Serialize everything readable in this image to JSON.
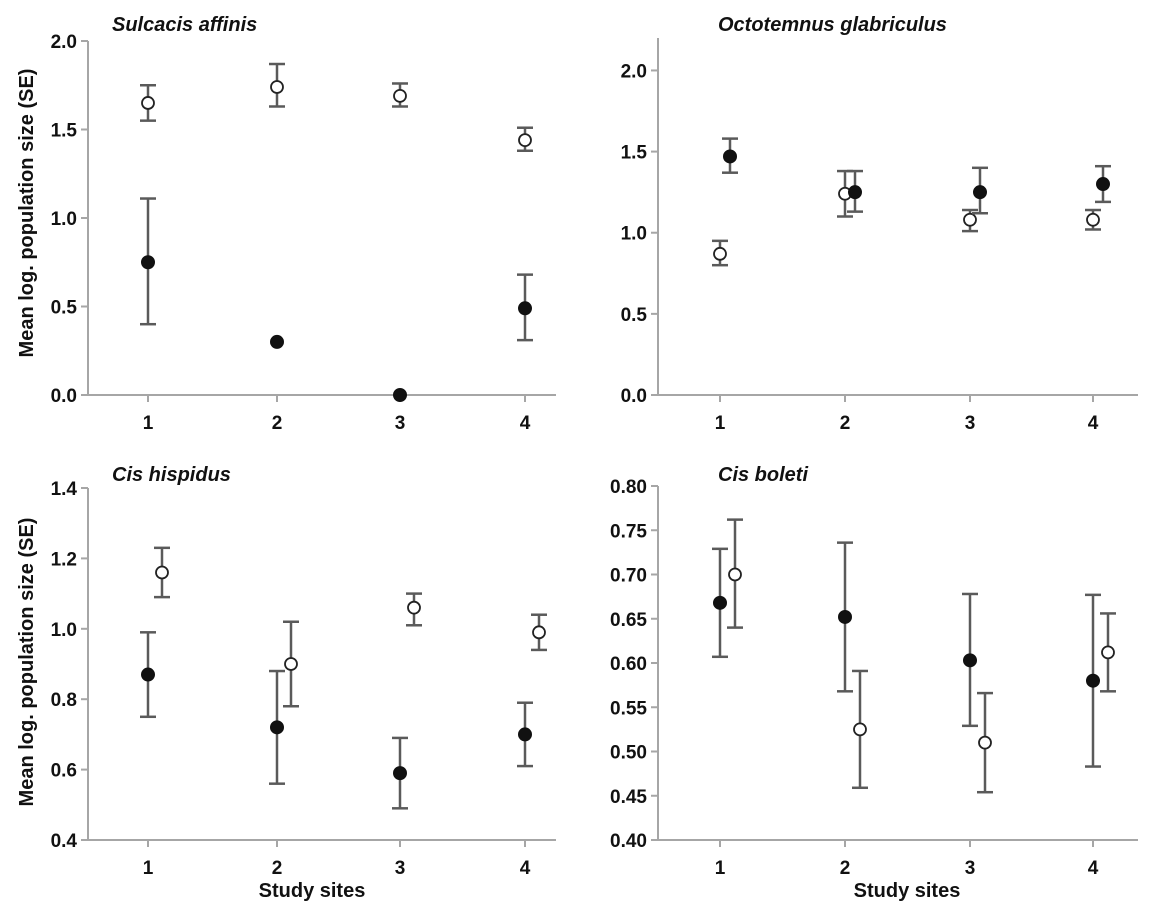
{
  "figure": {
    "ylabel": "Mean log. population size (SE)",
    "xlabel": "Study sites"
  },
  "chart_data": [
    {
      "type": "scatter",
      "title": "Sulcacis affinis",
      "xlabel": "",
      "ylabel": "Mean log. population size (SE)",
      "categories": [
        "1",
        "2",
        "3",
        "4"
      ],
      "ylim": [
        0,
        2.0
      ],
      "yticks": [
        "0.0",
        "0.5",
        "1.0",
        "1.5",
        "2.0"
      ],
      "series": [
        {
          "marker": "open",
          "points": [
            {
              "x": 1,
              "y": 1.65,
              "lo": 1.55,
              "hi": 1.75
            },
            {
              "x": 2,
              "y": 1.74,
              "lo": 1.63,
              "hi": 1.87
            },
            {
              "x": 3,
              "y": 1.69,
              "lo": 1.63,
              "hi": 1.76
            },
            {
              "x": 4,
              "y": 1.44,
              "lo": 1.38,
              "hi": 1.51
            }
          ]
        },
        {
          "marker": "filled",
          "points": [
            {
              "x": 1,
              "y": 0.75,
              "lo": 0.4,
              "hi": 1.11
            },
            {
              "x": 2,
              "y": 0.3
            },
            {
              "x": 3,
              "y": 0.0
            },
            {
              "x": 4,
              "y": 0.49,
              "lo": 0.31,
              "hi": 0.68
            }
          ]
        }
      ]
    },
    {
      "type": "scatter",
      "title": "Octotemnus glabriculus",
      "xlabel": "",
      "ylabel": "",
      "categories": [
        "1",
        "2",
        "3",
        "4"
      ],
      "ylim": [
        0,
        2.2
      ],
      "yticks": [
        "0.0",
        "0.5",
        "1.0",
        "1.5",
        "2.0"
      ],
      "series": [
        {
          "marker": "open",
          "points": [
            {
              "x": 1,
              "y": 0.87,
              "lo": 0.8,
              "hi": 0.95
            },
            {
              "x": 2,
              "y": 1.24,
              "lo": 1.1,
              "hi": 1.38
            },
            {
              "x": 3,
              "y": 1.08,
              "lo": 1.01,
              "hi": 1.14
            },
            {
              "x": 4,
              "y": 1.08,
              "lo": 1.02,
              "hi": 1.14
            }
          ]
        },
        {
          "marker": "filled",
          "points": [
            {
              "x": 1,
              "y": 1.47,
              "lo": 1.37,
              "hi": 1.58
            },
            {
              "x": 2,
              "y": 1.25,
              "lo": 1.13,
              "hi": 1.38
            },
            {
              "x": 3,
              "y": 1.25,
              "lo": 1.12,
              "hi": 1.4
            },
            {
              "x": 4,
              "y": 1.3,
              "lo": 1.19,
              "hi": 1.41
            }
          ]
        }
      ]
    },
    {
      "type": "scatter",
      "title": "Cis hispidus",
      "xlabel": "Study sites",
      "ylabel": "Mean log. population size (SE)",
      "categories": [
        "1",
        "2",
        "3",
        "4"
      ],
      "ylim": [
        0.4,
        1.4
      ],
      "yticks": [
        "0.4",
        "0.6",
        "0.8",
        "1.0",
        "1.2",
        "1.4"
      ],
      "series": [
        {
          "marker": "open",
          "points": [
            {
              "x": 1,
              "y": 1.16,
              "lo": 1.09,
              "hi": 1.23
            },
            {
              "x": 2,
              "y": 0.9,
              "lo": 0.78,
              "hi": 1.02
            },
            {
              "x": 3,
              "y": 1.06,
              "lo": 1.01,
              "hi": 1.1
            },
            {
              "x": 4,
              "y": 0.99,
              "lo": 0.94,
              "hi": 1.04
            }
          ]
        },
        {
          "marker": "filled",
          "points": [
            {
              "x": 1,
              "y": 0.87,
              "lo": 0.75,
              "hi": 0.99
            },
            {
              "x": 2,
              "y": 0.72,
              "lo": 0.56,
              "hi": 0.88
            },
            {
              "x": 3,
              "y": 0.59,
              "lo": 0.49,
              "hi": 0.69
            },
            {
              "x": 4,
              "y": 0.7,
              "lo": 0.61,
              "hi": 0.79
            }
          ]
        }
      ]
    },
    {
      "type": "scatter",
      "title": "Cis boleti",
      "xlabel": "Study sites",
      "ylabel": "",
      "categories": [
        "1",
        "2",
        "3",
        "4"
      ],
      "ylim": [
        0.4,
        0.8
      ],
      "yticks": [
        "0.40",
        "0.45",
        "0.50",
        "0.55",
        "0.60",
        "0.65",
        "0.70",
        "0.75",
        "0.80"
      ],
      "series": [
        {
          "marker": "open",
          "points": [
            {
              "x": 1,
              "y": 0.7,
              "lo": 0.64,
              "hi": 0.762
            },
            {
              "x": 2,
              "y": 0.525,
              "lo": 0.459,
              "hi": 0.591
            },
            {
              "x": 3,
              "y": 0.51,
              "lo": 0.454,
              "hi": 0.566
            },
            {
              "x": 4,
              "y": 0.612,
              "lo": 0.568,
              "hi": 0.656
            }
          ]
        },
        {
          "marker": "filled",
          "points": [
            {
              "x": 1,
              "y": 0.668,
              "lo": 0.607,
              "hi": 0.729
            },
            {
              "x": 2,
              "y": 0.652,
              "lo": 0.568,
              "hi": 0.736
            },
            {
              "x": 3,
              "y": 0.603,
              "lo": 0.529,
              "hi": 0.678
            },
            {
              "x": 4,
              "y": 0.58,
              "lo": 0.483,
              "hi": 0.677
            }
          ]
        }
      ]
    }
  ]
}
